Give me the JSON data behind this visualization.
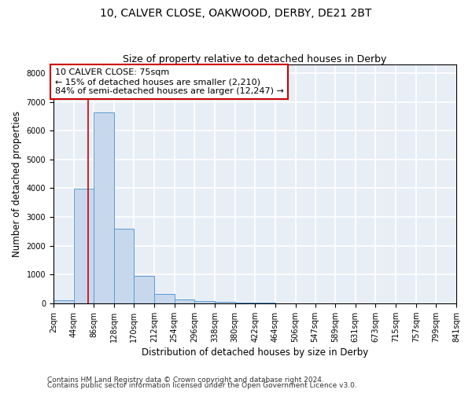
{
  "title_line1": "10, CALVER CLOSE, OAKWOOD, DERBY, DE21 2BT",
  "title_line2": "Size of property relative to detached houses in Derby",
  "xlabel": "Distribution of detached houses by size in Derby",
  "ylabel": "Number of detached properties",
  "bin_edges": [
    2,
    44,
    86,
    128,
    170,
    212,
    254,
    296,
    338,
    380,
    422,
    464,
    506,
    547,
    589,
    631,
    673,
    715,
    757,
    799,
    841
  ],
  "bar_heights": [
    100,
    3980,
    6620,
    2600,
    950,
    310,
    130,
    90,
    55,
    20,
    10,
    5,
    2,
    2,
    1,
    1,
    1,
    1,
    1,
    0
  ],
  "bar_color": "#c8d8ec",
  "bar_edge_color": "#5b9bd5",
  "property_size": 75,
  "red_line_color": "#cc0000",
  "annotation_line1": "10 CALVER CLOSE: 75sqm",
  "annotation_line2": "← 15% of detached houses are smaller (2,210)",
  "annotation_line3": "84% of semi-detached houses are larger (12,247) →",
  "annotation_box_color": "white",
  "annotation_box_edge_color": "#cc0000",
  "ylim": [
    0,
    8300
  ],
  "yticks": [
    0,
    1000,
    2000,
    3000,
    4000,
    5000,
    6000,
    7000,
    8000
  ],
  "bg_color": "#e8eef6",
  "grid_color": "white",
  "footer_line1": "Contains HM Land Registry data © Crown copyright and database right 2024.",
  "footer_line2": "Contains public sector information licensed under the Open Government Licence v3.0.",
  "title_fontsize": 10,
  "subtitle_fontsize": 9,
  "axis_label_fontsize": 8.5,
  "tick_fontsize": 7,
  "annotation_fontsize": 8,
  "footer_fontsize": 6.5
}
